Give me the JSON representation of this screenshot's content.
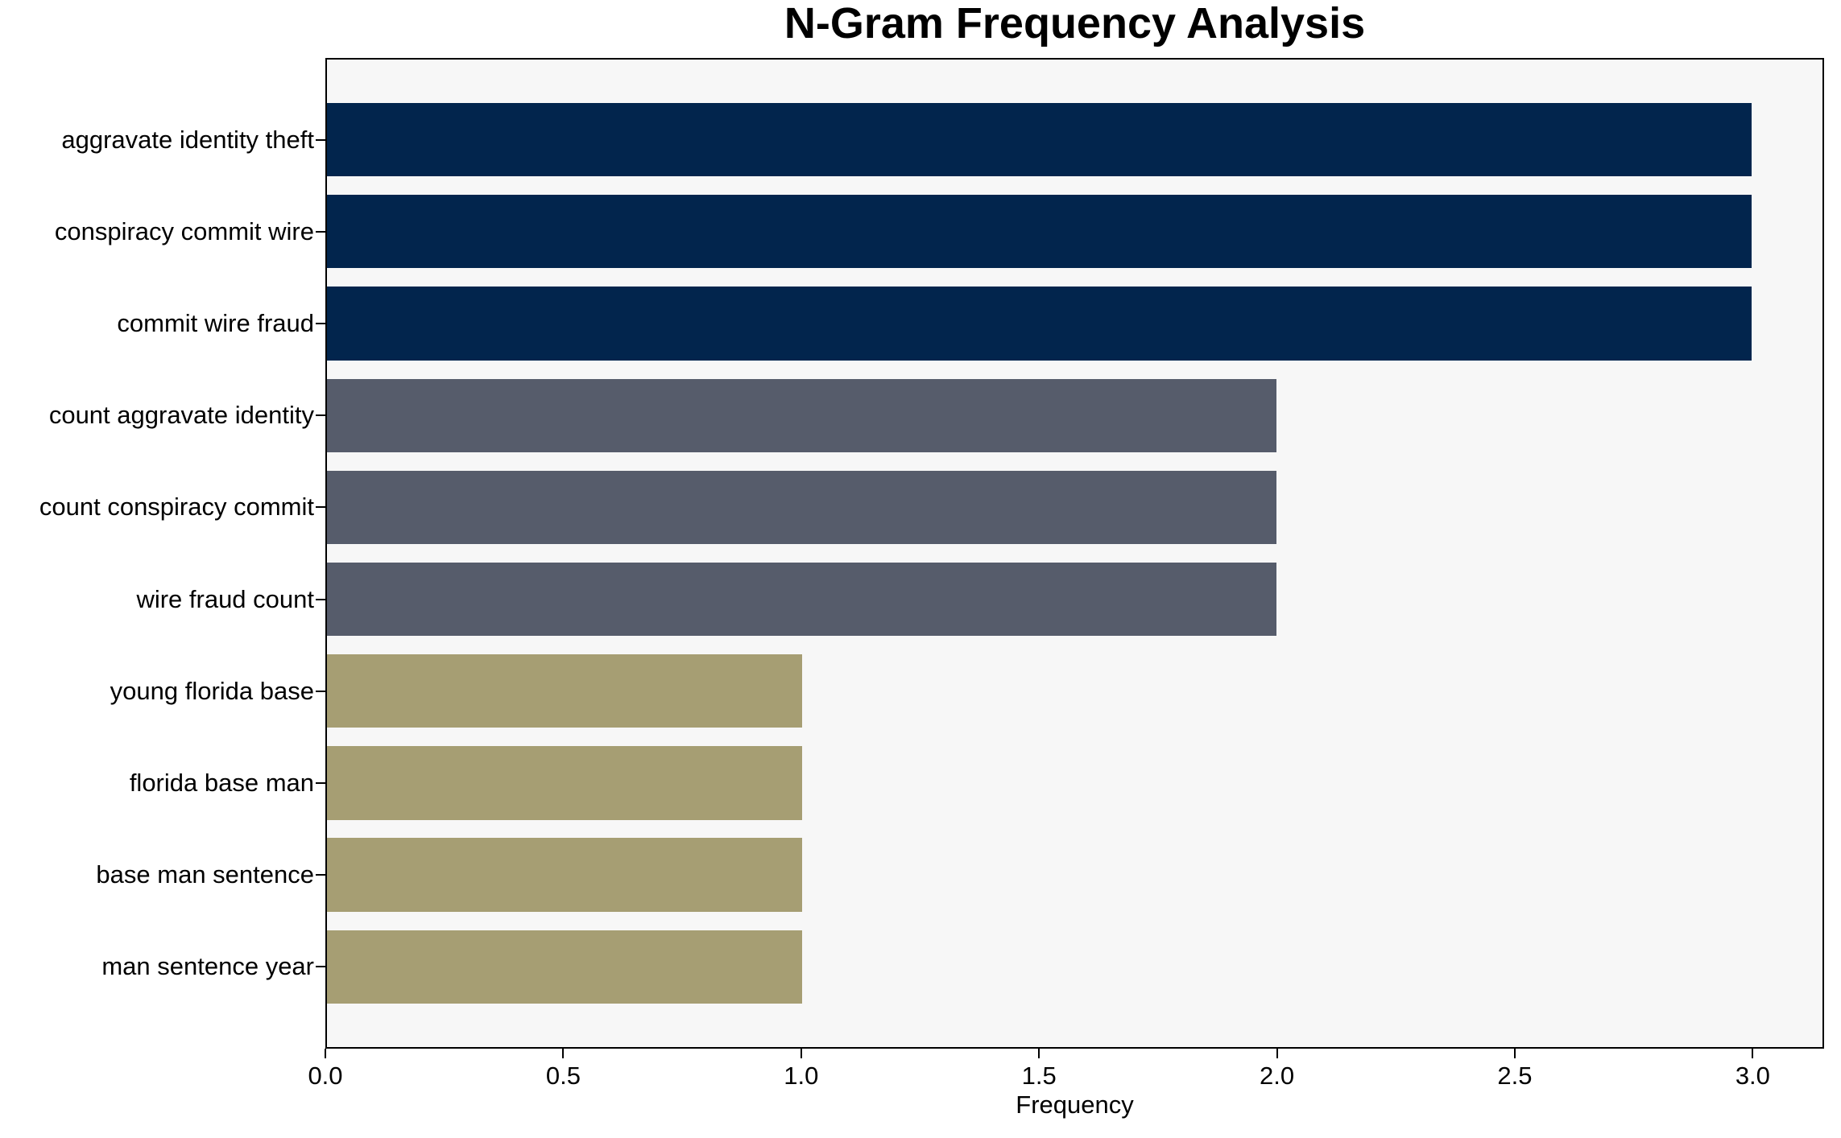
{
  "chart_data": {
    "type": "bar",
    "orientation": "horizontal",
    "title": "N-Gram Frequency Analysis",
    "xlabel": "Frequency",
    "ylabel": "",
    "categories": [
      "aggravate identity theft",
      "conspiracy commit wire",
      "commit wire fraud",
      "count aggravate identity",
      "count conspiracy commit",
      "wire fraud count",
      "young florida base",
      "florida base man",
      "base man sentence",
      "man sentence year"
    ],
    "values": [
      3,
      3,
      3,
      2,
      2,
      2,
      1,
      1,
      1,
      1
    ],
    "bar_colors": [
      "#02254d",
      "#02254d",
      "#02254d",
      "#565c6b",
      "#565c6b",
      "#565c6b",
      "#a69e73",
      "#a69e73",
      "#a69e73",
      "#a69e73"
    ],
    "value_color_map": {
      "3": "#02254d",
      "2": "#565c6b",
      "1": "#a69e73"
    },
    "xlim": [
      0,
      3.15
    ],
    "xtick_values": [
      0,
      0.5,
      1,
      1.5,
      2,
      2.5,
      3
    ],
    "xtick_labels": [
      "0.0",
      "0.5",
      "1.0",
      "1.5",
      "2.0",
      "2.5",
      "3.0"
    ],
    "grid": false,
    "legend_position": "none",
    "plot_background": "#f7f7f7",
    "figure_background": "#ffffff",
    "spine_color": "#000000",
    "bar_relative_height": 0.8
  }
}
